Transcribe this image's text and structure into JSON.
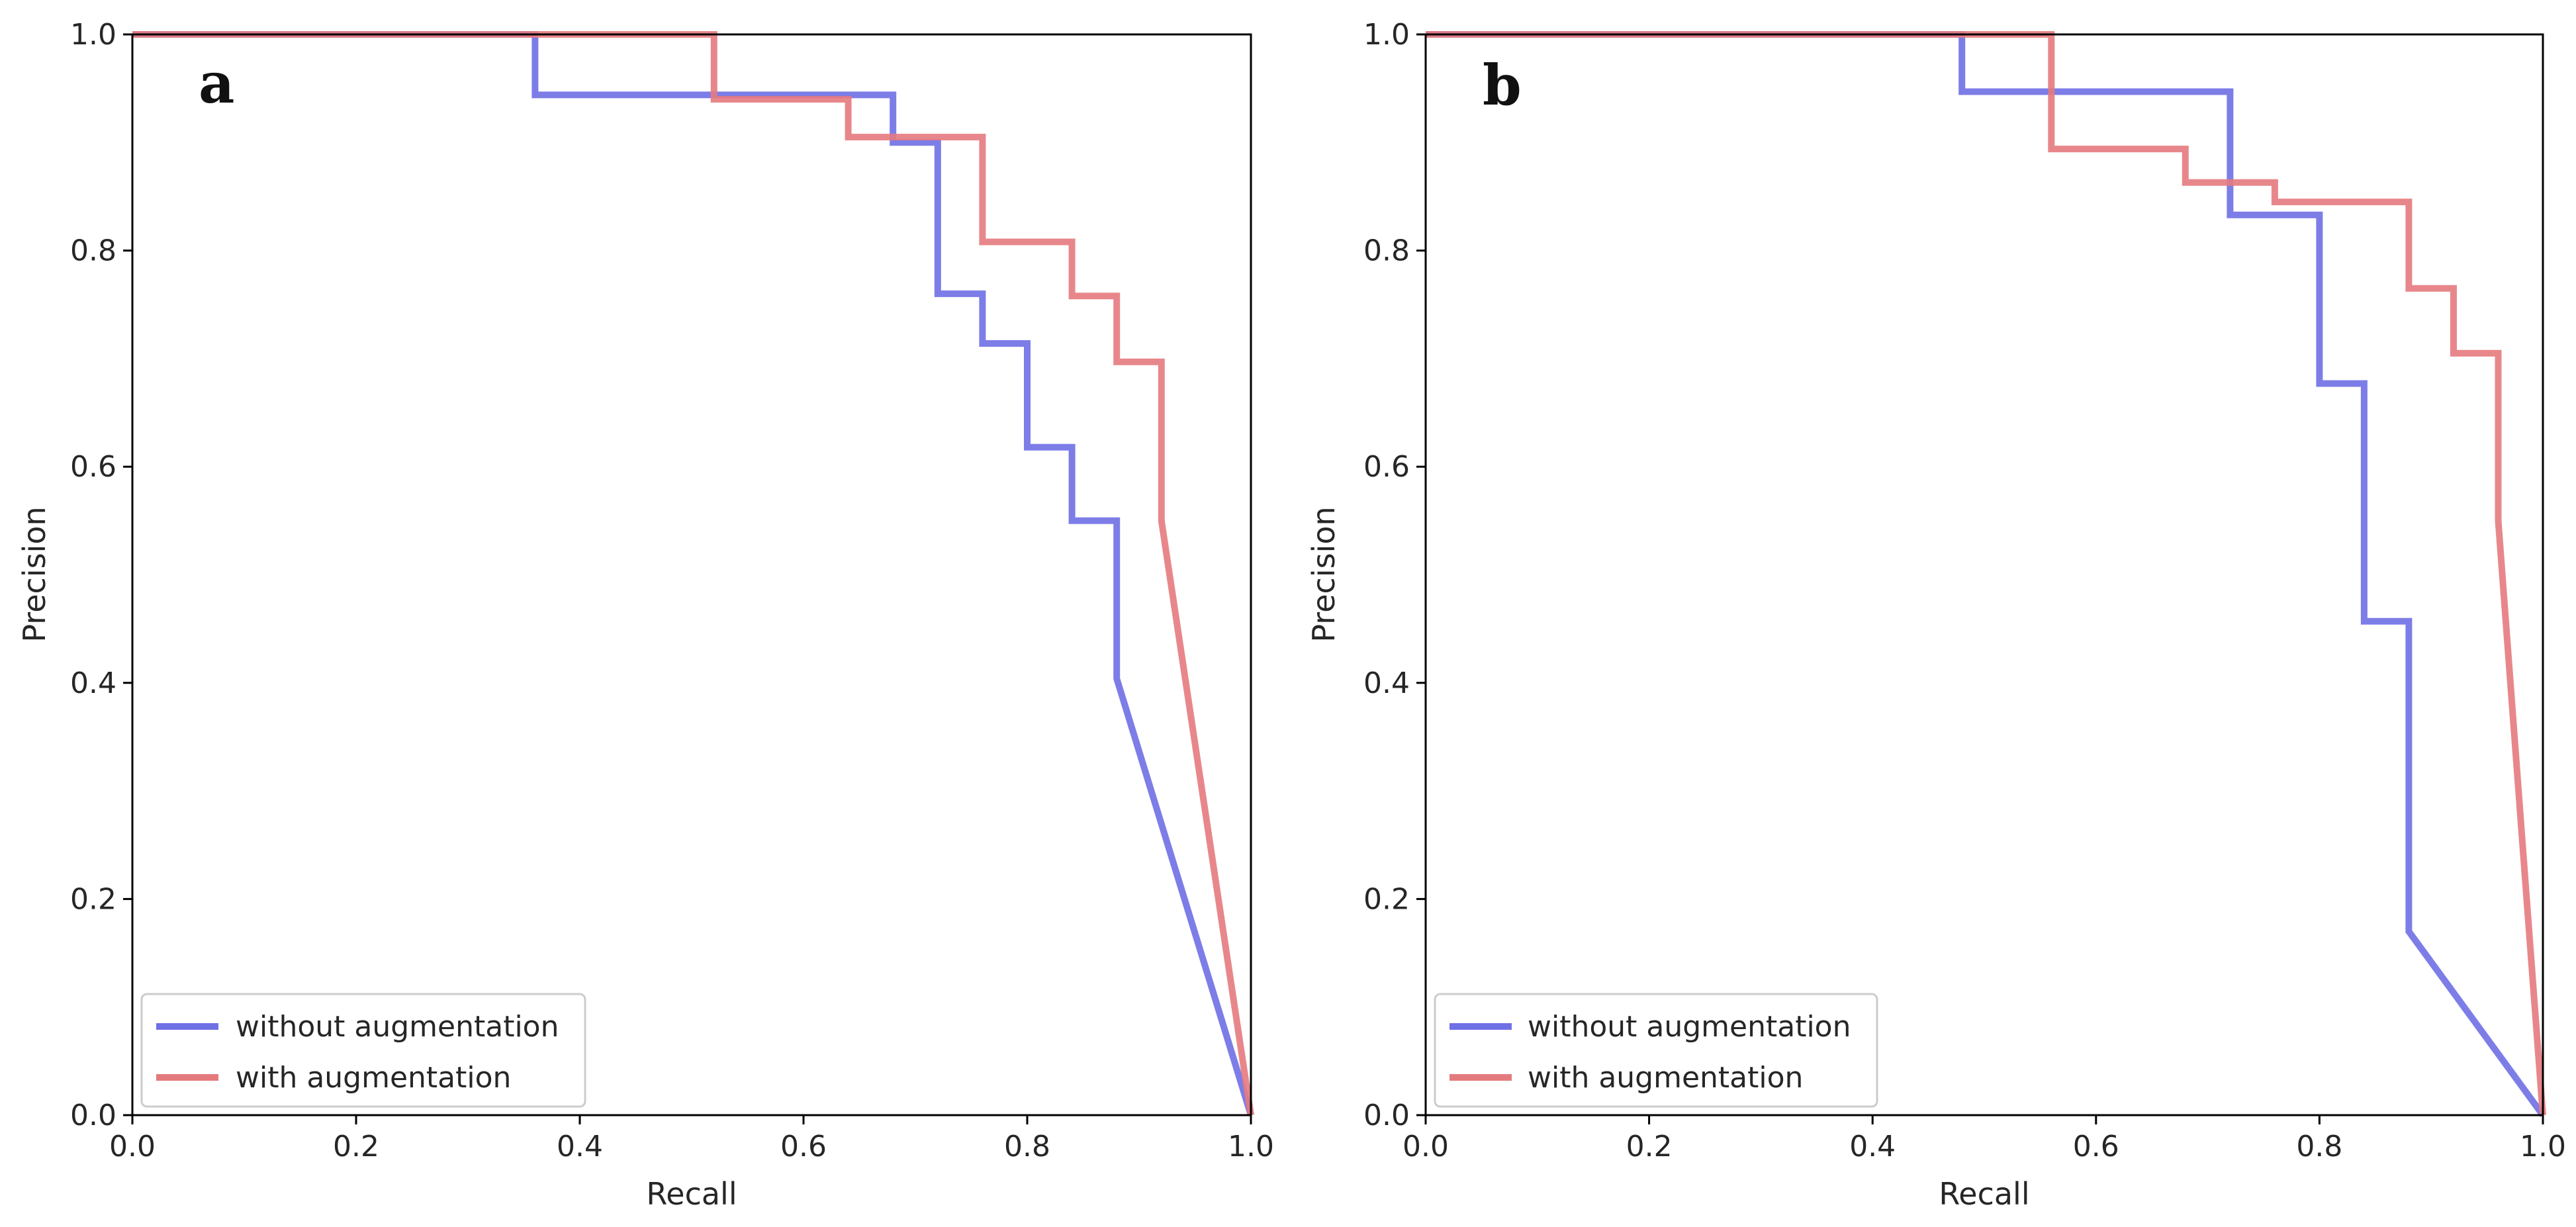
{
  "figure": {
    "colors": {
      "without": "#6f6fe6",
      "with": "#e57a7e",
      "axes": "#000000",
      "legend_border": "#cccccc"
    }
  },
  "chart_data": [
    {
      "type": "line",
      "panel_label": "a",
      "title": "",
      "xlabel": "Recall",
      "ylabel": "Precision",
      "xlim": [
        0.0,
        1.0
      ],
      "ylim": [
        0.0,
        1.0
      ],
      "xticks": [
        "0.0",
        "0.2",
        "0.4",
        "0.6",
        "0.8",
        "1.0"
      ],
      "yticks": [
        "0.0",
        "0.2",
        "0.4",
        "0.6",
        "0.8",
        "1.0"
      ],
      "grid": false,
      "legend_position": "lower-left",
      "series": [
        {
          "name": "without augmentation",
          "color": "#6f6fe6",
          "x": [
            0.0,
            0.36,
            0.36,
            0.68,
            0.68,
            0.72,
            0.72,
            0.76,
            0.76,
            0.8,
            0.8,
            0.84,
            0.84,
            0.88,
            0.88,
            1.0
          ],
          "y": [
            1.0,
            1.0,
            0.944,
            0.944,
            0.9,
            0.9,
            0.76,
            0.76,
            0.714,
            0.714,
            0.618,
            0.618,
            0.55,
            0.55,
            0.404,
            0.0
          ]
        },
        {
          "name": "with augmentation",
          "color": "#e57a7e",
          "x": [
            0.0,
            0.52,
            0.52,
            0.64,
            0.64,
            0.76,
            0.76,
            0.84,
            0.84,
            0.88,
            0.88,
            0.92,
            0.92,
            1.0
          ],
          "y": [
            1.0,
            1.0,
            0.94,
            0.94,
            0.905,
            0.905,
            0.808,
            0.808,
            0.758,
            0.758,
            0.697,
            0.697,
            0.55,
            0.0
          ]
        }
      ]
    },
    {
      "type": "line",
      "panel_label": "b",
      "title": "",
      "xlabel": "Recall",
      "ylabel": "Precision",
      "xlim": [
        0.0,
        1.0
      ],
      "ylim": [
        0.0,
        1.0
      ],
      "xticks": [
        "0.0",
        "0.2",
        "0.4",
        "0.6",
        "0.8",
        "1.0"
      ],
      "yticks": [
        "0.0",
        "0.2",
        "0.4",
        "0.6",
        "0.8",
        "1.0"
      ],
      "grid": false,
      "legend_position": "lower-left",
      "series": [
        {
          "name": "without augmentation",
          "color": "#6f6fe6",
          "x": [
            0.0,
            0.48,
            0.48,
            0.72,
            0.72,
            0.8,
            0.8,
            0.84,
            0.84,
            0.88,
            0.88,
            1.0
          ],
          "y": [
            1.0,
            1.0,
            0.947,
            0.947,
            0.833,
            0.833,
            0.677,
            0.677,
            0.457,
            0.457,
            0.17,
            0.0
          ]
        },
        {
          "name": "with augmentation",
          "color": "#e57a7e",
          "x": [
            0.0,
            0.56,
            0.56,
            0.68,
            0.68,
            0.76,
            0.76,
            0.88,
            0.88,
            0.92,
            0.92,
            0.96,
            0.96,
            1.0
          ],
          "y": [
            1.0,
            1.0,
            0.894,
            0.894,
            0.863,
            0.863,
            0.845,
            0.845,
            0.765,
            0.765,
            0.705,
            0.705,
            0.55,
            0.0
          ]
        }
      ]
    }
  ]
}
